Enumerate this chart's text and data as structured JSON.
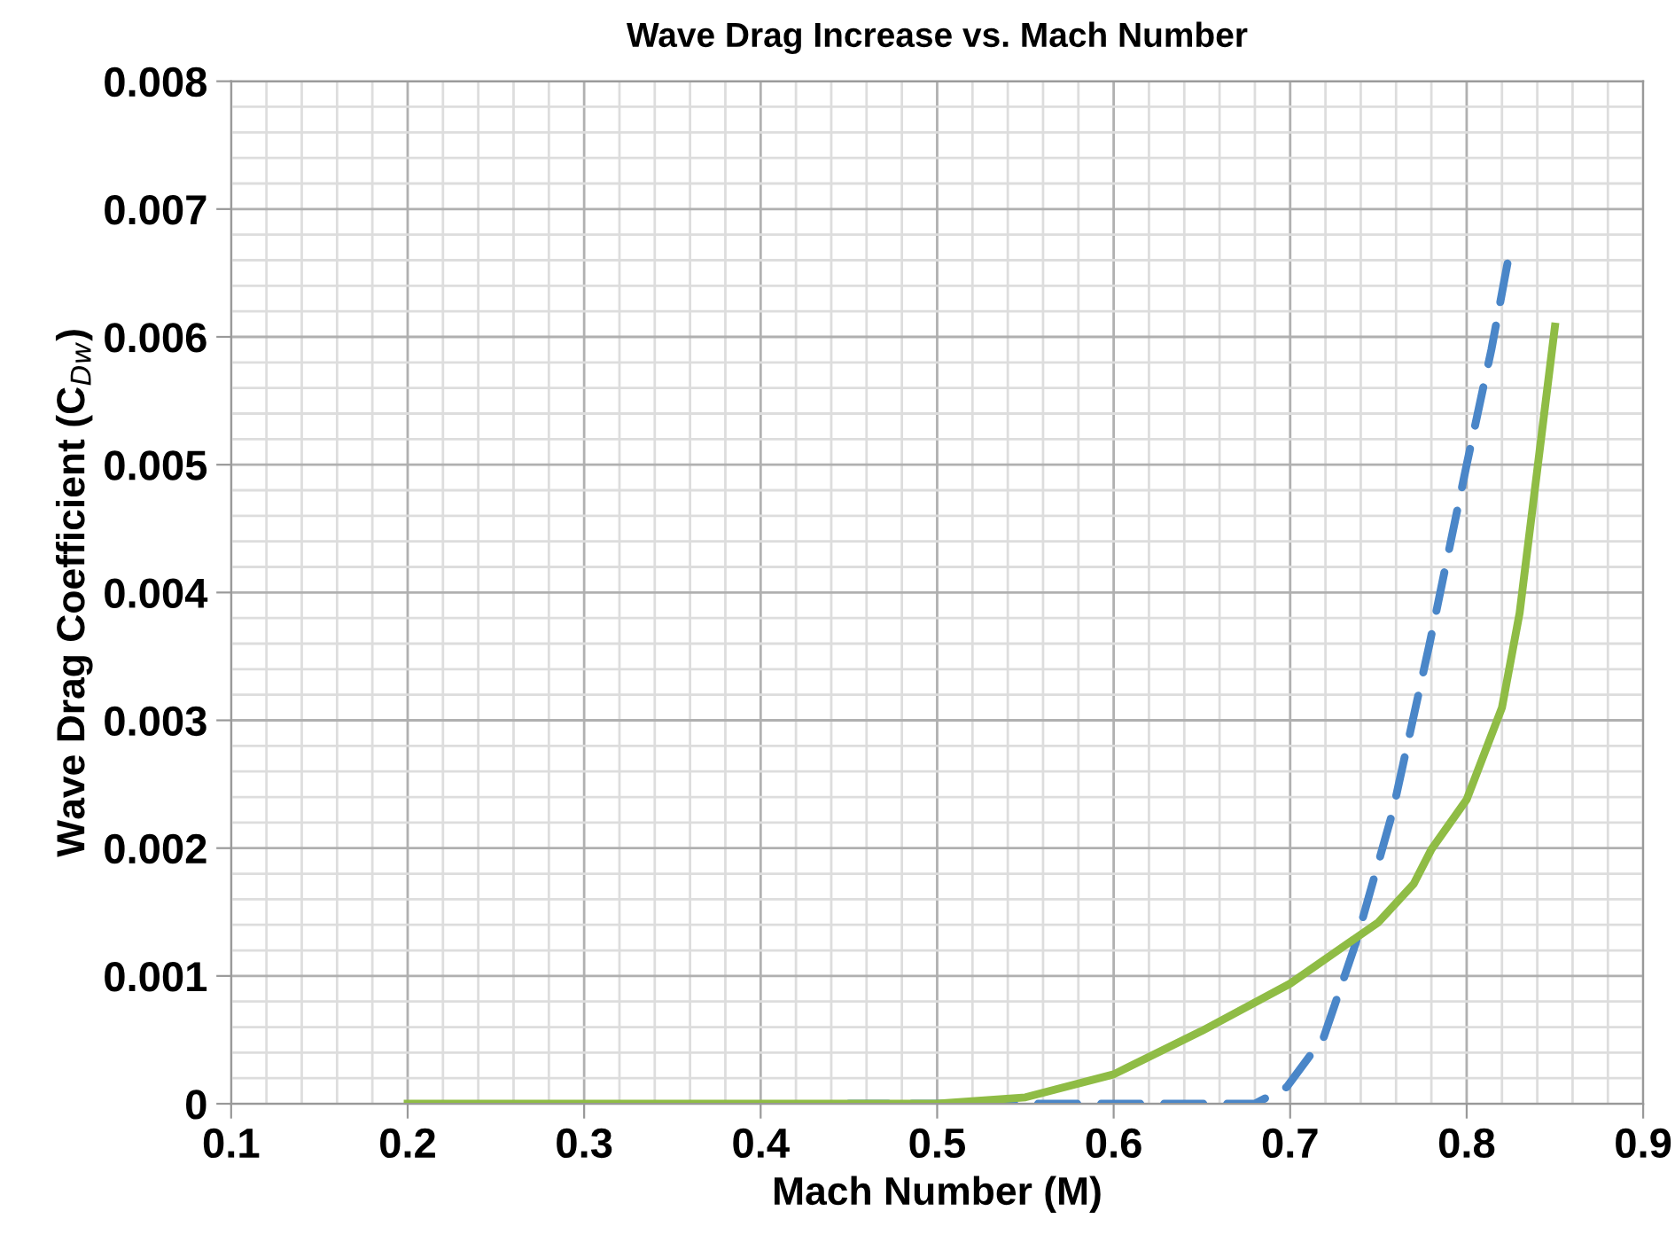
{
  "chart_data": {
    "type": "line",
    "title": "Wave Drag Increase vs. Mach Number",
    "xlabel": "Mach Number (M)",
    "ylabel": "Wave Drag Coefficient (C$_{Dw}$)",
    "xlim": [
      0.1,
      0.9
    ],
    "xticks": [
      0.1,
      0.2,
      0.3,
      0.4,
      0.5,
      0.6,
      0.7,
      0.8,
      0.9
    ],
    "ylim": [
      0,
      0.008
    ],
    "yticks": [
      0,
      0.001,
      0.002,
      0.003,
      0.004,
      0.005,
      0.006,
      0.007,
      0.008
    ],
    "grid": true,
    "legend": false,
    "series": [
      {
        "color": "#4a86c8",
        "line_style": "dashed",
        "x": [
          0.45,
          0.6,
          0.68,
          0.698,
          0.719,
          0.737,
          0.758,
          0.779,
          0.8,
          0.814,
          0.824
        ],
        "values": [
          0,
          0,
          0,
          0.00013,
          0.00052,
          0.00125,
          0.00228,
          0.0036,
          0.005,
          0.0059,
          0.00664
        ]
      },
      {
        "color": "#8fbc45",
        "line_style": "solid",
        "x": [
          0.2,
          0.3,
          0.4,
          0.5,
          0.55,
          0.6,
          0.65,
          0.7,
          0.75,
          0.77,
          0.78,
          0.8,
          0.82,
          0.83,
          0.84,
          0.85
        ],
        "values": [
          0,
          0,
          0,
          0,
          5e-05,
          0.00023,
          0.00057,
          0.00094,
          0.00142,
          0.00172,
          0.00199,
          0.00238,
          0.0031,
          0.00384,
          0.00496,
          0.00608
        ]
      }
    ]
  }
}
